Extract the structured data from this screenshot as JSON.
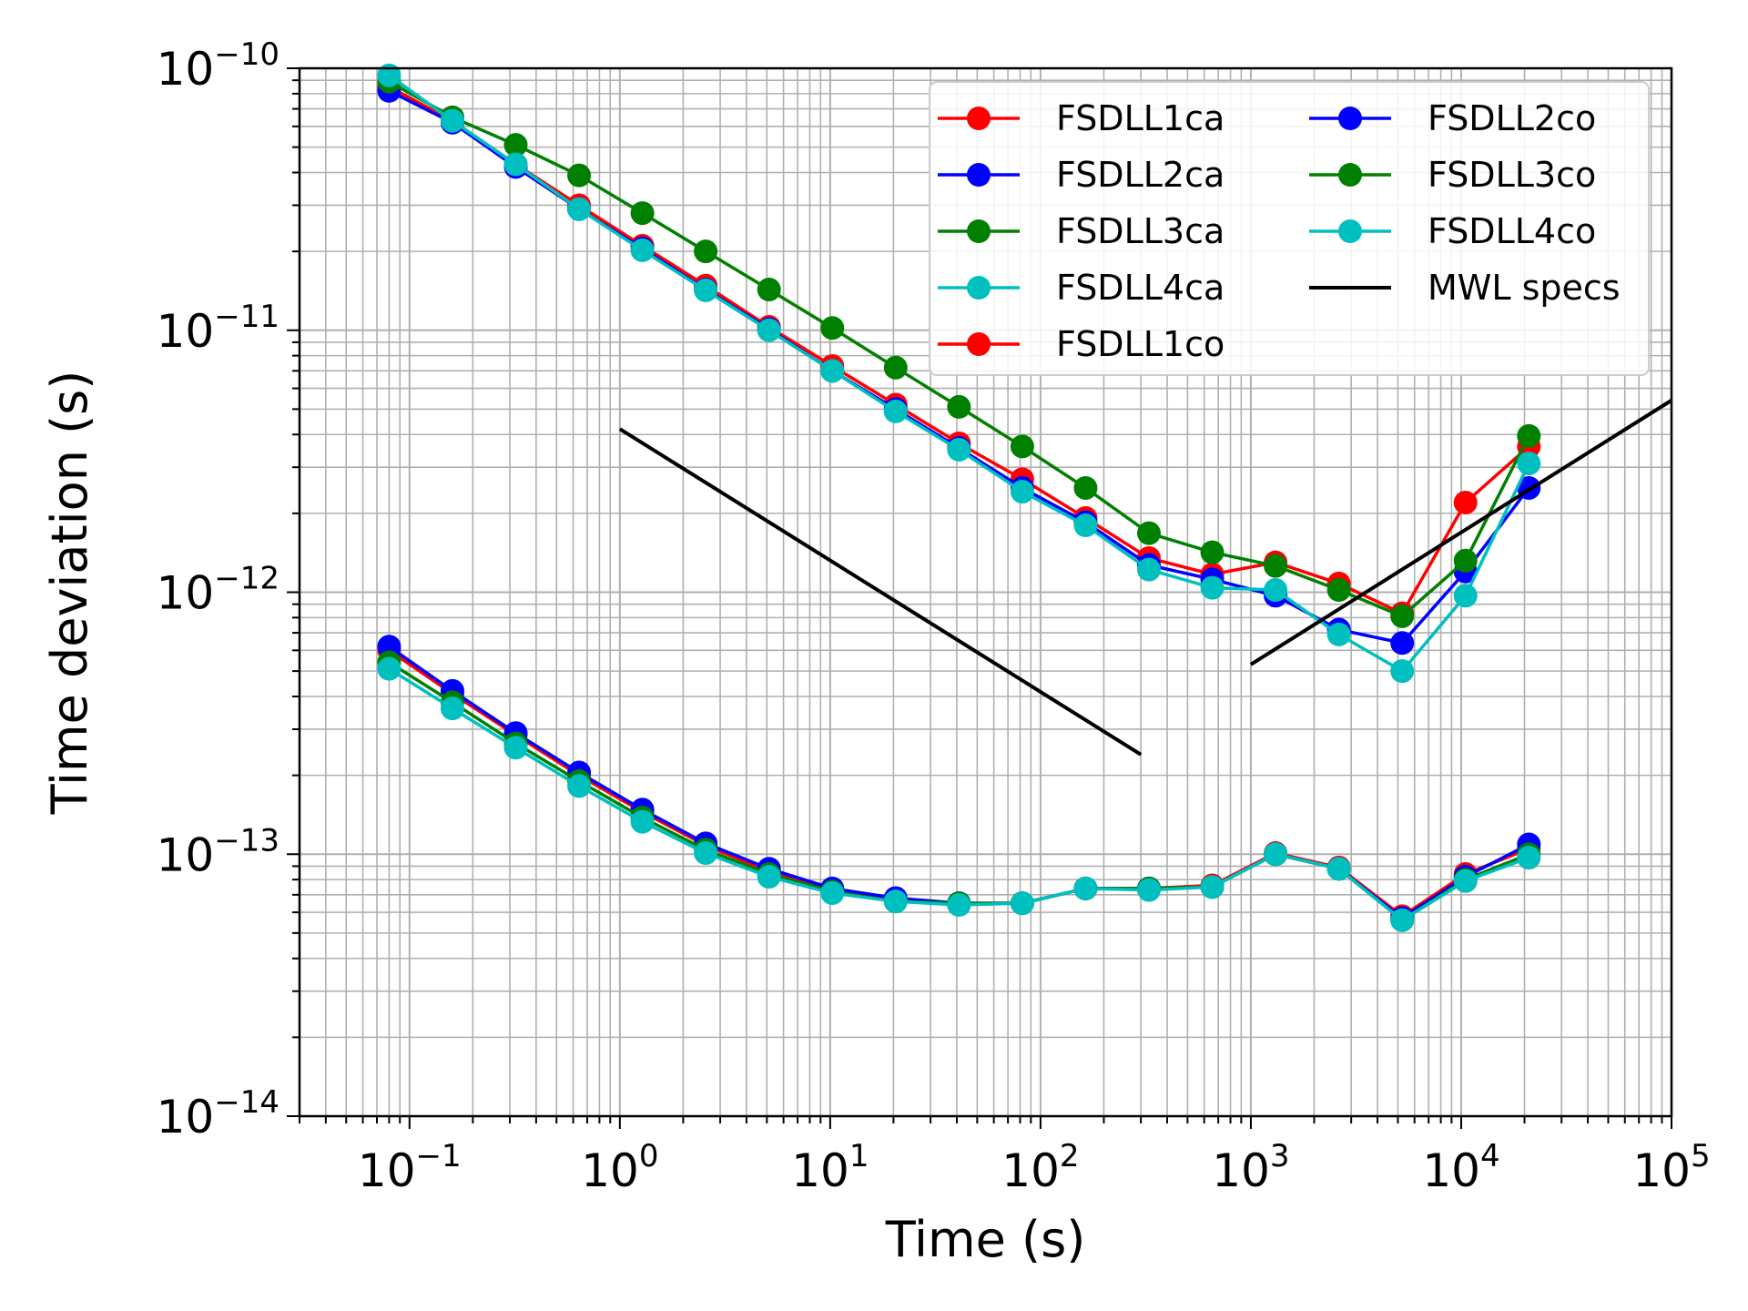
{
  "chart_data": {
    "type": "line",
    "xlabel": "Time (s)",
    "ylabel": "Time deviation (s)",
    "xscale": "log",
    "yscale": "log",
    "xlim": [
      0.03,
      100000
    ],
    "ylim": [
      1e-14,
      1e-10
    ],
    "grid": true,
    "legend_position": "top-right",
    "legend_columns": 2,
    "x_ticks": [
      {
        "base": "10",
        "exp": "−1"
      },
      {
        "base": "10",
        "exp": "0"
      },
      {
        "base": "10",
        "exp": "1"
      },
      {
        "base": "10",
        "exp": "2"
      },
      {
        "base": "10",
        "exp": "3"
      },
      {
        "base": "10",
        "exp": "4"
      },
      {
        "base": "10",
        "exp": "5"
      }
    ],
    "y_ticks": [
      {
        "base": "10",
        "exp": "−14"
      },
      {
        "base": "10",
        "exp": "−13"
      },
      {
        "base": "10",
        "exp": "−12"
      },
      {
        "base": "10",
        "exp": "−11"
      },
      {
        "base": "10",
        "exp": "−10"
      }
    ],
    "x": [
      0.08,
      0.16,
      0.32,
      0.64,
      1.28,
      2.56,
      5.12,
      10.24,
      20.48,
      40.96,
      81.92,
      163.84,
      327.68,
      655.36,
      1310.72,
      2621.44,
      5242.88,
      10485.76,
      20971.52
    ],
    "series": [
      {
        "name": "FSDLL1ca",
        "color": "#ff0000",
        "values": [
          8.5e-11,
          6.3e-11,
          4.3e-11,
          3e-11,
          2.1e-11,
          1.48e-11,
          1.03e-11,
          7.3e-12,
          5.2e-12,
          3.7e-12,
          2.7e-12,
          1.92e-12,
          1.35e-12,
          1.17e-12,
          1.3e-12,
          1.08e-12,
          8.3e-13,
          2.2e-12,
          3.6e-12
        ]
      },
      {
        "name": "FSDLL2ca",
        "color": "#0000ff",
        "values": [
          8.2e-11,
          6.2e-11,
          4.2e-11,
          2.9e-11,
          2.05e-11,
          1.43e-11,
          1.01e-11,
          7e-12,
          5e-12,
          3.55e-12,
          2.5e-12,
          1.85e-12,
          1.27e-12,
          1.12e-12,
          9.7e-13,
          7.2e-13,
          6.4e-13,
          1.2e-12,
          2.5e-12
        ]
      },
      {
        "name": "FSDLL3ca",
        "color": "#008000",
        "values": [
          8.9e-11,
          6.5e-11,
          5.1e-11,
          3.9e-11,
          2.8e-11,
          2e-11,
          1.43e-11,
          1.02e-11,
          7.2e-12,
          5.1e-12,
          3.6e-12,
          2.5e-12,
          1.68e-12,
          1.42e-12,
          1.26e-12,
          1.02e-12,
          8.1e-13,
          1.32e-12,
          3.95e-12
        ]
      },
      {
        "name": "FSDLL4ca",
        "color": "#00bfbf",
        "values": [
          9.4e-11,
          6.3e-11,
          4.3e-11,
          2.9e-11,
          2.02e-11,
          1.42e-11,
          1e-11,
          7e-12,
          4.9e-12,
          3.5e-12,
          2.42e-12,
          1.8e-12,
          1.22e-12,
          1.04e-12,
          1.02e-12,
          6.9e-13,
          5e-13,
          9.7e-13,
          3.1e-12
        ]
      },
      {
        "name": "FSDLL1co",
        "color": "#ff0000",
        "values": [
          6e-13,
          4.1e-13,
          2.85e-13,
          2e-13,
          1.45e-13,
          1.08e-13,
          8.6e-14,
          7.3e-14,
          6.7e-14,
          6.5e-14,
          6.5e-14,
          7.4e-14,
          7.4e-14,
          7.6e-14,
          1.01e-13,
          8.9e-14,
          5.8e-14,
          8.4e-14,
          1.05e-13
        ]
      },
      {
        "name": "FSDLL2co",
        "color": "#0000ff",
        "values": [
          6.2e-13,
          4.2e-13,
          2.9e-13,
          2.05e-13,
          1.48e-13,
          1.1e-13,
          8.8e-14,
          7.4e-14,
          6.8e-14,
          6.5e-14,
          6.5e-14,
          7.4e-14,
          7.4e-14,
          7.5e-14,
          1e-13,
          8.8e-14,
          5.7e-14,
          8.2e-14,
          1.09e-13
        ]
      },
      {
        "name": "FSDLL3co",
        "color": "#008000",
        "values": [
          5.4e-13,
          3.8e-13,
          2.65e-13,
          1.9e-13,
          1.38e-13,
          1.04e-13,
          8.4e-14,
          7.2e-14,
          6.6e-14,
          6.5e-14,
          6.5e-14,
          7.4e-14,
          7.4e-14,
          7.5e-14,
          1e-13,
          8.8e-14,
          5.6e-14,
          8e-14,
          1e-13
        ]
      },
      {
        "name": "FSDLL4co",
        "color": "#00bfbf",
        "values": [
          5.1e-13,
          3.6e-13,
          2.55e-13,
          1.82e-13,
          1.33e-13,
          1.01e-13,
          8.2e-14,
          7.1e-14,
          6.6e-14,
          6.4e-14,
          6.5e-14,
          7.4e-14,
          7.3e-14,
          7.5e-14,
          1e-13,
          8.8e-14,
          5.6e-14,
          7.9e-14,
          9.7e-14
        ]
      },
      {
        "name": "MWL specs",
        "color": "#000000",
        "marker": "none",
        "segments": [
          {
            "x": [
              1,
              300
            ],
            "y": [
              4.2e-12,
              2.4e-13
            ]
          },
          {
            "x": [
              1000,
              100000
            ],
            "y": [
              5.3e-13,
              5.4e-12
            ]
          }
        ]
      }
    ]
  }
}
